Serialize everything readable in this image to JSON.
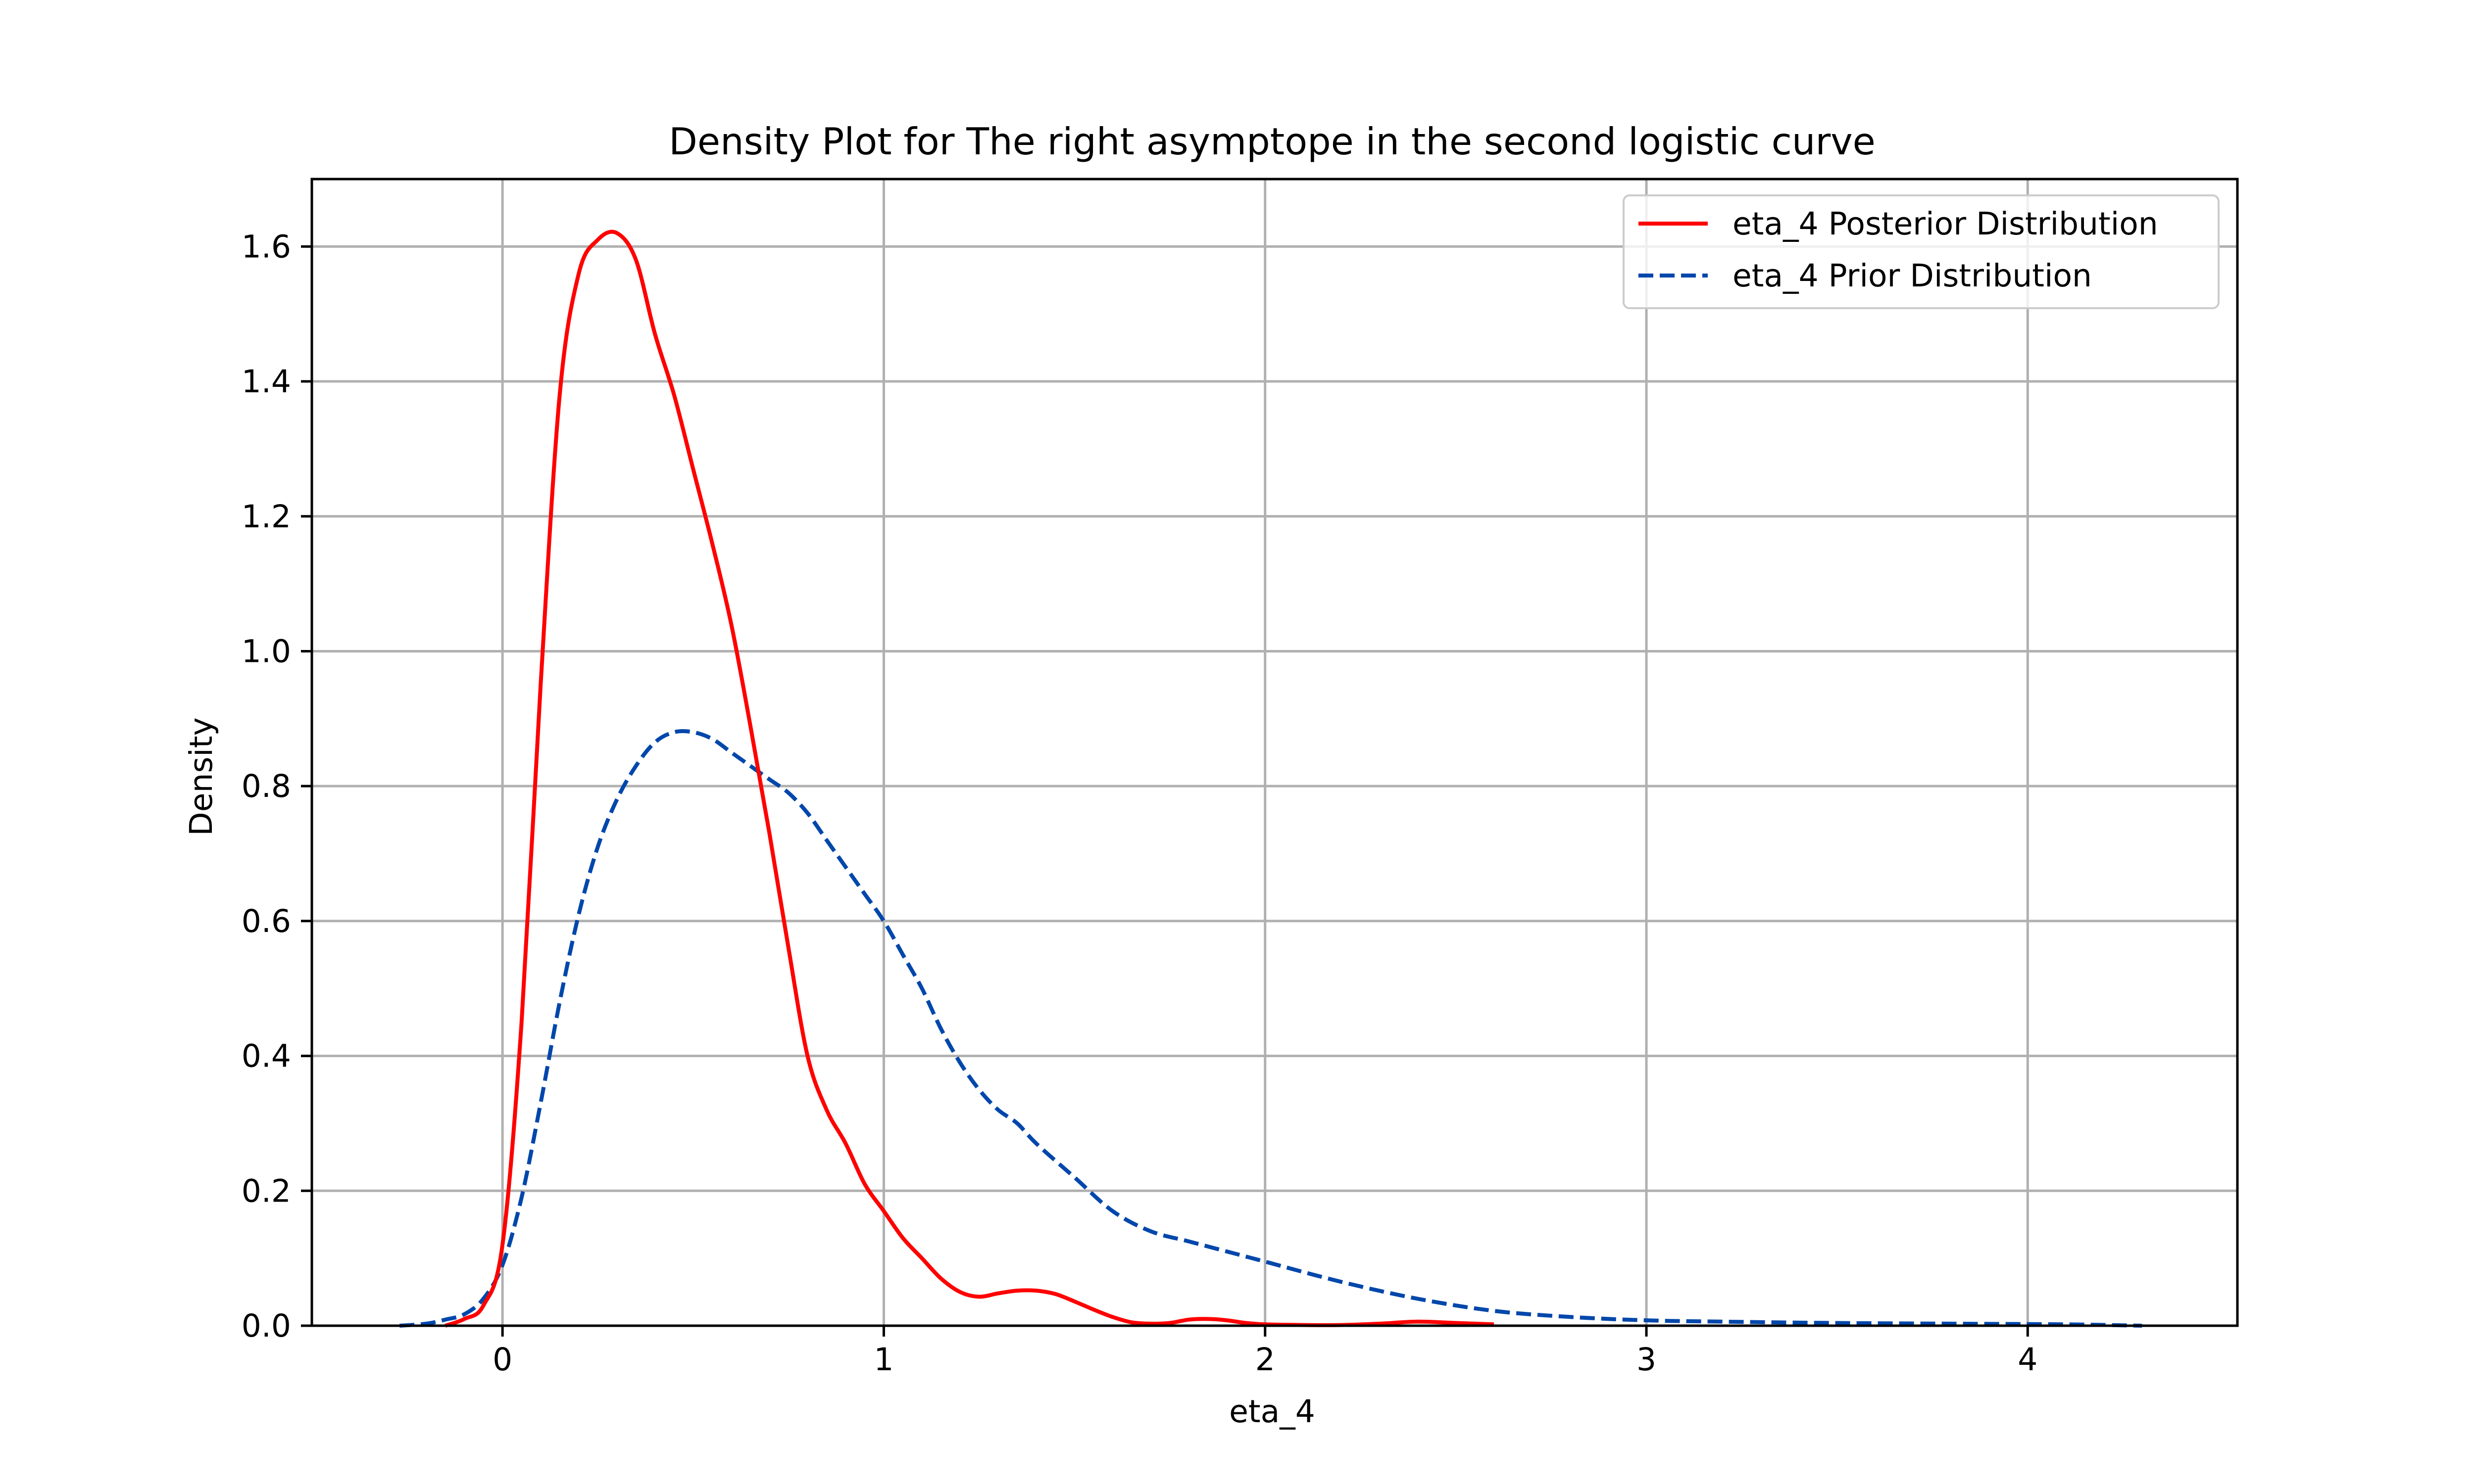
{
  "chart_data": {
    "type": "line",
    "title": "Density Plot for The right asymptope in the second logistic curve",
    "xlabel": "eta_4",
    "ylabel": "Density",
    "xlim": [
      -0.5,
      4.55
    ],
    "ylim": [
      0,
      1.7
    ],
    "xticks": [
      0,
      1,
      2,
      3,
      4
    ],
    "yticks": [
      0.0,
      0.2,
      0.4,
      0.6,
      0.8,
      1.0,
      1.2,
      1.4,
      1.6
    ],
    "xtick_labels": [
      "0",
      "1",
      "2",
      "3",
      "4"
    ],
    "ytick_labels": [
      "0.0",
      "0.2",
      "0.4",
      "0.6",
      "0.8",
      "1.0",
      "1.2",
      "1.4",
      "1.6"
    ],
    "grid": true,
    "legend_position": "top-right",
    "series": [
      {
        "name": "eta_4 Posterior Distribution",
        "color": "#ff0000",
        "dash": "solid",
        "x": [
          -0.15,
          -0.1,
          -0.05,
          0.0,
          0.05,
          0.1,
          0.15,
          0.2,
          0.25,
          0.3,
          0.35,
          0.4,
          0.45,
          0.5,
          0.55,
          0.6,
          0.65,
          0.7,
          0.75,
          0.8,
          0.85,
          0.9,
          0.95,
          1.0,
          1.05,
          1.1,
          1.15,
          1.2,
          1.25,
          1.3,
          1.35,
          1.4,
          1.45,
          1.5,
          1.55,
          1.6,
          1.65,
          1.7,
          1.75,
          1.8,
          1.85,
          1.9,
          1.95,
          2.0,
          2.1,
          2.2,
          2.3,
          2.4,
          2.5,
          2.6
        ],
        "y": [
          0.0,
          0.01,
          0.03,
          0.12,
          0.45,
          0.95,
          1.38,
          1.56,
          1.61,
          1.62,
          1.58,
          1.47,
          1.38,
          1.27,
          1.16,
          1.04,
          0.89,
          0.73,
          0.56,
          0.4,
          0.32,
          0.27,
          0.21,
          0.17,
          0.13,
          0.1,
          0.07,
          0.05,
          0.043,
          0.048,
          0.052,
          0.052,
          0.047,
          0.036,
          0.024,
          0.013,
          0.005,
          0.003,
          0.004,
          0.009,
          0.01,
          0.008,
          0.004,
          0.002,
          0.001,
          0.001,
          0.003,
          0.006,
          0.004,
          0.002
        ]
      },
      {
        "name": "eta_4 Prior Distribution",
        "color": "#0047ab",
        "dash": "dashed",
        "x": [
          -0.27,
          -0.2,
          -0.15,
          -0.1,
          -0.05,
          0.0,
          0.05,
          0.1,
          0.15,
          0.2,
          0.25,
          0.3,
          0.35,
          0.4,
          0.45,
          0.5,
          0.55,
          0.6,
          0.65,
          0.7,
          0.75,
          0.8,
          0.85,
          0.9,
          0.95,
          1.0,
          1.05,
          1.1,
          1.15,
          1.2,
          1.25,
          1.3,
          1.35,
          1.4,
          1.5,
          1.6,
          1.7,
          1.8,
          1.9,
          2.0,
          2.2,
          2.4,
          2.6,
          2.8,
          3.0,
          3.2,
          3.5,
          3.8,
          4.1,
          4.3
        ],
        "y": [
          0.0,
          0.003,
          0.009,
          0.017,
          0.04,
          0.09,
          0.19,
          0.33,
          0.48,
          0.61,
          0.71,
          0.78,
          0.83,
          0.865,
          0.88,
          0.88,
          0.87,
          0.85,
          0.83,
          0.81,
          0.79,
          0.76,
          0.72,
          0.68,
          0.64,
          0.6,
          0.55,
          0.5,
          0.44,
          0.39,
          0.35,
          0.32,
          0.3,
          0.27,
          0.22,
          0.17,
          0.14,
          0.125,
          0.11,
          0.095,
          0.065,
          0.04,
          0.022,
          0.013,
          0.008,
          0.006,
          0.004,
          0.003,
          0.002,
          0.0
        ]
      }
    ]
  }
}
